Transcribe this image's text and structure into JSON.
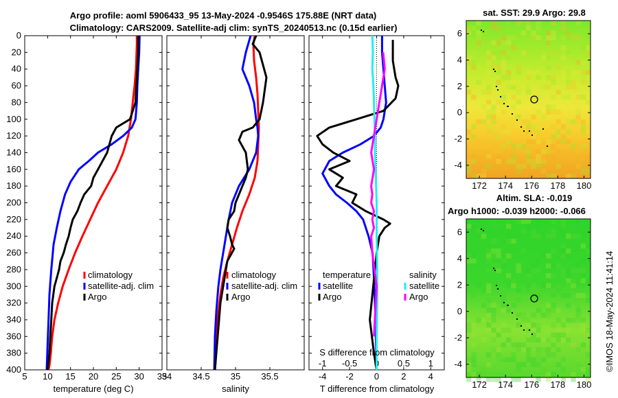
{
  "titles": {
    "line1": "Argo profile: aoml 5906433_95 13-May-2024 -0.9546S 175.88E (NRT data)",
    "line2": "Climatology: CARS2009. Satellite-adj clim: synTS_20240513.nc (0.15d earlier)",
    "sst": "sat. SST: 29.9 Argo: 29.8",
    "sla1": "Altim. SLA: -0.019",
    "sla2": "Argo h1000: -0.039 h2000: -0.066",
    "credit": "©IMOS 18-May-2024 11:41:14"
  },
  "colors": {
    "climatology": "#ff0000",
    "satellite": "#0000ff",
    "argo": "#000000",
    "sal_sat": "#22eeee",
    "sal_argo": "#ff00ff"
  },
  "chart_data": [
    {
      "type": "line",
      "id": "temperature",
      "xlabel": "temperature (deg C)",
      "xlim": [
        5,
        35
      ],
      "xticks": [
        "5",
        "10",
        "15",
        "20",
        "25",
        "30",
        "35"
      ],
      "ylim": [
        400,
        0
      ],
      "yticks": [
        "0",
        "20",
        "40",
        "60",
        "80",
        "100",
        "120",
        "140",
        "160",
        "180",
        "200",
        "220",
        "240",
        "260",
        "280",
        "300",
        "320",
        "340",
        "360",
        "380",
        "400"
      ],
      "legend": [
        "climatology",
        "satellite-adj. clim",
        "Argo"
      ],
      "series": [
        {
          "name": "climatology",
          "color": "#ff0000",
          "x": [
            29.5,
            29.5,
            29.3,
            29.0,
            28.6,
            28.2,
            27.6,
            26.5,
            25.0,
            23.0,
            21.0,
            19.3,
            17.6,
            16.0,
            14.6,
            13.3,
            12.3,
            11.5,
            11.0,
            10.7,
            10.4,
            10.2,
            10.0,
            9.9
          ],
          "y": [
            0,
            10,
            40,
            60,
            80,
            100,
            120,
            140,
            160,
            180,
            200,
            220,
            240,
            260,
            280,
            300,
            320,
            340,
            360,
            380,
            395,
            400,
            400,
            400
          ]
        },
        {
          "name": "satellite-adj. clim",
          "color": "#0000ff",
          "x": [
            30.1,
            30.0,
            29.8,
            29.6,
            29.5,
            29.2,
            28.4,
            26.5,
            24.0,
            21.0,
            19.0,
            16.8,
            15.0,
            13.8,
            12.8,
            12.0,
            11.3,
            10.8,
            10.4,
            10.2,
            10.0,
            9.8
          ],
          "y": [
            0,
            20,
            40,
            60,
            80,
            100,
            110,
            120,
            130,
            140,
            150,
            160,
            175,
            190,
            210,
            230,
            250,
            280,
            310,
            340,
            370,
            400
          ]
        },
        {
          "name": "Argo",
          "color": "#000000",
          "x": [
            29.8,
            29.8,
            29.6,
            29.4,
            29.2,
            28.0,
            26.5,
            25.0,
            24.0,
            23.0,
            21.0,
            20.0,
            19.5,
            18.0,
            17.2,
            16.5,
            15.5,
            15.0,
            14.6,
            14.0,
            13.5,
            12.8,
            12.5,
            12.0,
            11.5,
            11.0,
            10.8,
            10.6,
            10.4,
            10.2,
            10.0
          ],
          "y": [
            0,
            20,
            40,
            60,
            80,
            100,
            105,
            110,
            120,
            140,
            160,
            170,
            180,
            190,
            200,
            210,
            220,
            230,
            240,
            250,
            260,
            270,
            280,
            290,
            300,
            320,
            340,
            360,
            380,
            390,
            400
          ]
        }
      ]
    },
    {
      "type": "line",
      "id": "salinity",
      "xlabel": "salinity",
      "xlim": [
        34,
        36
      ],
      "xticks": [
        "34",
        "34.5",
        "35",
        "35.5"
      ],
      "ylim": [
        400,
        0
      ],
      "legend": [
        "climatology",
        "satellite-adj. clim",
        "Argo"
      ],
      "series": [
        {
          "name": "climatology",
          "color": "#ff0000",
          "x": [
            35.28,
            35.26,
            35.27,
            35.3,
            35.32,
            35.33,
            35.34,
            35.33,
            35.32,
            35.28,
            35.2,
            35.1,
            35.02,
            34.95,
            34.88,
            34.82,
            34.78,
            34.75,
            34.72,
            34.71,
            34.7
          ],
          "y": [
            0,
            10,
            30,
            50,
            70,
            90,
            110,
            130,
            150,
            170,
            190,
            210,
            230,
            250,
            270,
            290,
            310,
            330,
            360,
            390,
            400
          ]
        },
        {
          "name": "satellite-adj. clim",
          "color": "#0000ff",
          "x": [
            35.22,
            35.15,
            35.1,
            35.2,
            35.27,
            35.3,
            35.32,
            35.33,
            35.3,
            35.2,
            35.05,
            34.95,
            34.9,
            34.86,
            34.82,
            34.78,
            34.75,
            34.72,
            34.7,
            34.69
          ],
          "y": [
            0,
            20,
            40,
            60,
            80,
            100,
            110,
            120,
            140,
            160,
            180,
            200,
            220,
            240,
            260,
            280,
            300,
            330,
            360,
            400
          ]
        },
        {
          "name": "Argo",
          "color": "#000000",
          "x": [
            35.3,
            35.25,
            35.35,
            35.45,
            35.4,
            35.35,
            35.25,
            35.1,
            35.05,
            35.15,
            35.18,
            35.15,
            35.1,
            35.05,
            35.0,
            34.98,
            34.9,
            34.88,
            34.92,
            34.95,
            34.98,
            34.88,
            34.82,
            34.78,
            34.75,
            34.72,
            34.7
          ],
          "y": [
            0,
            10,
            20,
            50,
            80,
            100,
            110,
            115,
            125,
            140,
            160,
            170,
            180,
            190,
            200,
            210,
            220,
            230,
            240,
            250,
            255,
            270,
            300,
            320,
            350,
            380,
            400
          ]
        }
      ]
    },
    {
      "type": "line",
      "id": "difference",
      "xlabel": "T difference from climatology",
      "xlabel_top": "S difference from climatology",
      "xlim": [
        -5,
        5
      ],
      "xticks": [
        "-4",
        "-2",
        "0",
        "2",
        "4"
      ],
      "xlim_top": [
        -1.25,
        1.25
      ],
      "xticks_top": [
        "-1",
        "-0.5",
        "0",
        "0.5",
        "1"
      ],
      "ylim": [
        400,
        0
      ],
      "legend_temperature": [
        "temperature",
        "satellite",
        "Argo"
      ],
      "legend_salinity": [
        "salinity",
        "satellite",
        "Argo"
      ],
      "series": [
        {
          "name": "T satellite",
          "color": "#0000ff",
          "axis": "T",
          "x": [
            0.4,
            0.4,
            0.5,
            0.6,
            0.7,
            0.6,
            0.5,
            0.3,
            -0.2,
            -1.2,
            -2.5,
            -3.5,
            -4.0,
            -3.5,
            -3.0,
            -2.2,
            -1.5,
            -1.0,
            -0.6,
            -0.3,
            -0.2,
            -0.1,
            0.0
          ],
          "y": [
            0,
            20,
            40,
            60,
            80,
            90,
            100,
            110,
            120,
            130,
            140,
            150,
            165,
            180,
            190,
            200,
            210,
            220,
            240,
            260,
            290,
            330,
            400
          ]
        },
        {
          "name": "T Argo",
          "color": "#000000",
          "axis": "T",
          "x": [
            1.2,
            1.2,
            1.4,
            1.6,
            1.4,
            0.5,
            -1.5,
            -3.5,
            -4.4,
            -4.0,
            -3.2,
            -2.0,
            -3.5,
            -2.5,
            -3.0,
            -1.5,
            -1.8,
            -0.8,
            0.5,
            1.0,
            0.6,
            0.2,
            0.0,
            -0.5,
            -0.2,
            0.0
          ],
          "y": [
            5,
            30,
            50,
            60,
            75,
            90,
            100,
            110,
            120,
            130,
            140,
            150,
            160,
            170,
            180,
            190,
            200,
            210,
            220,
            225,
            230,
            240,
            260,
            340,
            380,
            400
          ]
        },
        {
          "name": "S satellite",
          "color": "#22eeee",
          "axis": "S",
          "x": [
            -0.08,
            -0.07,
            -0.08,
            -0.06,
            -0.05,
            -0.04,
            -0.03,
            -0.03,
            -0.02,
            -0.01,
            0.0,
            0.0,
            0.01,
            0.01,
            0.0,
            0.0
          ],
          "y": [
            0,
            20,
            40,
            60,
            80,
            100,
            120,
            140,
            160,
            180,
            200,
            240,
            280,
            320,
            360,
            400
          ]
        },
        {
          "name": "S Argo",
          "color": "#ff00ff",
          "axis": "S",
          "x": [
            0.12,
            0.15,
            0.1,
            0.05,
            0.0,
            -0.05,
            -0.1,
            -0.05,
            -0.1,
            -0.08,
            -0.1,
            -0.05,
            -0.08,
            -0.05,
            -0.1,
            -0.08,
            0.0,
            -0.05
          ],
          "y": [
            20,
            40,
            60,
            80,
            100,
            120,
            140,
            160,
            180,
            190,
            200,
            210,
            220,
            230,
            240,
            260,
            300,
            360
          ]
        }
      ]
    },
    {
      "type": "heatmap",
      "id": "sst_map",
      "title": "sat. SST: 29.9 Argo: 29.8",
      "xlim": [
        171,
        180.5
      ],
      "ylim": [
        -5,
        7
      ],
      "xticks": [
        "172",
        "174",
        "176",
        "178",
        "180"
      ],
      "yticks": [
        "-4",
        "-2",
        "0",
        "2",
        "4",
        "6"
      ],
      "argo_position": {
        "lon": 175.88,
        "lat": 0.95
      }
    },
    {
      "type": "heatmap",
      "id": "sla_map",
      "title": "Altim. SLA: -0.019",
      "xlim": [
        171,
        180.5
      ],
      "ylim": [
        -5,
        7
      ],
      "xticks": [
        "172",
        "174",
        "176",
        "178",
        "180"
      ],
      "yticks": [
        "-4",
        "-2",
        "0",
        "2",
        "4",
        "6"
      ],
      "argo_position": {
        "lon": 175.88,
        "lat": 0.95
      }
    }
  ]
}
